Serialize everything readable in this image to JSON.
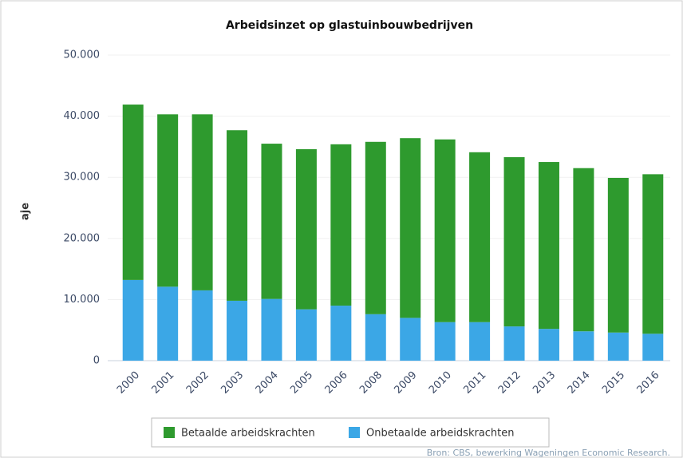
{
  "chart_data": {
    "type": "stacked_bar",
    "title": "Arbeidsinzet op glastuinbouwbedrijven",
    "y_label": "aje",
    "source": "Bron: CBS, bewerking Wageningen Economic Research.",
    "categories": [
      "2000",
      "2001",
      "2002",
      "2003",
      "2004",
      "2005",
      "2006",
      "2008",
      "2009",
      "2010",
      "2011",
      "2012",
      "2013",
      "2014",
      "2015",
      "2016"
    ],
    "series": [
      {
        "name": "Betaalde arbeidskrachten",
        "color": "#2e9a2e",
        "values": [
          28700,
          28200,
          28800,
          27900,
          25400,
          26200,
          26400,
          28200,
          29400,
          29900,
          27800,
          27700,
          27300,
          26700,
          25300,
          26100
        ]
      },
      {
        "name": "Onbetaalde arbeidskrachten",
        "color": "#3ba7e6",
        "values": [
          13200,
          12100,
          11500,
          9800,
          10100,
          8400,
          9000,
          7600,
          7000,
          6300,
          6300,
          5600,
          5200,
          4800,
          4600,
          4400
        ]
      }
    ],
    "ylim": [
      0,
      50000
    ],
    "yticks": [
      0,
      {
        "value": 10000,
        "label": "10.000"
      },
      {
        "value": 20000,
        "label": "20.000"
      },
      {
        "value": 30000,
        "label": "30.000"
      },
      {
        "value": 40000,
        "label": "40.000"
      },
      {
        "value": 50000,
        "label": "50.000"
      }
    ],
    "grid": true,
    "legend": "bottom"
  }
}
